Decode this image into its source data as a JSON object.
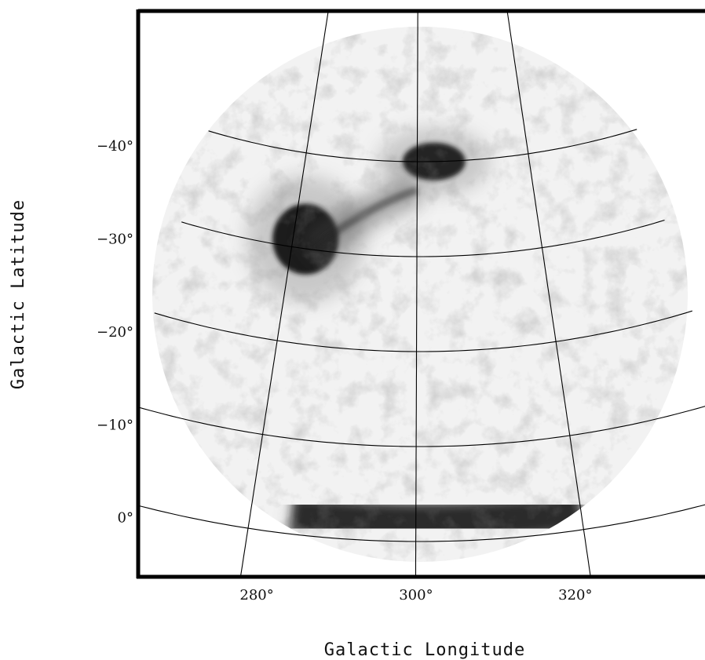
{
  "chart_data": {
    "type": "heatmap",
    "title": "",
    "xlabel": "Galactic Longitude",
    "ylabel": "Galactic Latitude",
    "x_ticks": [
      {
        "value": 280,
        "label": "280°"
      },
      {
        "value": 300,
        "label": "300°"
      },
      {
        "value": 320,
        "label": "320°"
      }
    ],
    "y_ticks": [
      {
        "value": -40,
        "label": "−40°"
      },
      {
        "value": -30,
        "label": "−30°"
      },
      {
        "value": -20,
        "label": "−20°"
      },
      {
        "value": -10,
        "label": "−10°"
      },
      {
        "value": 0,
        "label": "0°"
      }
    ],
    "xlim": [
      273,
      333
    ],
    "ylim": [
      -6,
      -50
    ],
    "colormap": "grayscale (white = low, black = high)",
    "features": [
      {
        "type": "blob",
        "l": 282,
        "b": -31,
        "intensity": 1.0
      },
      {
        "type": "blob",
        "l": 303,
        "b": -40,
        "intensity": 0.95
      },
      {
        "type": "ridge",
        "l_range": [
          285,
          320
        ],
        "b": -2,
        "intensity": 0.9
      },
      {
        "type": "filament",
        "l_range": [
          283,
          300
        ],
        "b_range": [
          -30,
          -37
        ],
        "intensity": 0.45
      }
    ],
    "grid": true,
    "legend": "none"
  },
  "colors": {
    "frame": "#000000",
    "grid": "#000000",
    "background": "#ffffff",
    "map_background": "#f1f1f1",
    "emission": "#1a1a1a"
  }
}
